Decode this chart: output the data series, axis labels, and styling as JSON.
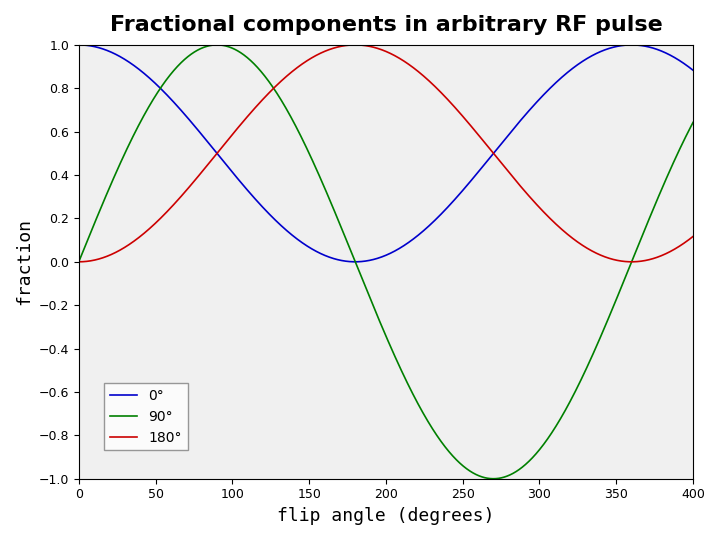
{
  "title": "Fractional components in arbitrary RF pulse",
  "xlabel": "flip angle (degrees)",
  "ylabel": "fraction",
  "xlim": [
    0,
    400
  ],
  "ylim": [
    -1,
    1
  ],
  "xticks": [
    0,
    50,
    100,
    150,
    200,
    250,
    300,
    350,
    400
  ],
  "yticks": [
    -1,
    -0.8,
    -0.6,
    -0.4,
    -0.2,
    0,
    0.2,
    0.4,
    0.6,
    0.8,
    1
  ],
  "line_blue_label": "0°",
  "line_green_label": "90°",
  "line_red_label": "180°",
  "line_blue_color": "#0000CC",
  "line_green_color": "#008000",
  "line_red_color": "#CC0000",
  "background_color": "#ffffff",
  "plot_bg_color": "#f0f0f0",
  "title_fontsize": 16,
  "axis_fontsize": 13,
  "legend_fontsize": 10
}
